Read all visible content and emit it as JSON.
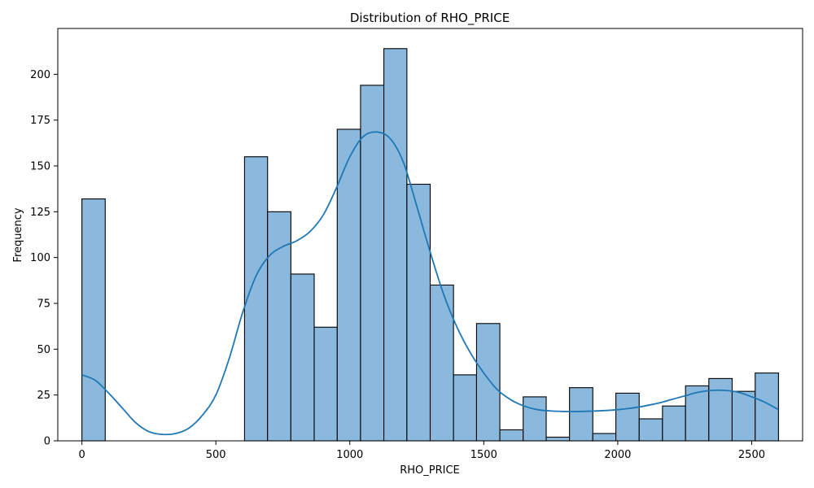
{
  "chart_data": {
    "type": "bar",
    "subtype": "histogram-with-kde",
    "title": "Distribution of RHO_PRICE",
    "xlabel": "RHO_PRICE",
    "ylabel": "Frequency",
    "xlim": [
      -90,
      2690
    ],
    "ylim": [
      0,
      225
    ],
    "xticks": [
      0,
      500,
      1000,
      1500,
      2000,
      2500
    ],
    "yticks": [
      0,
      25,
      50,
      75,
      100,
      125,
      150,
      175,
      200
    ],
    "grid": false,
    "bar_color": "#8ab9dd",
    "line_color": "#1f77b4",
    "bins": [
      {
        "start": 0,
        "end": 87,
        "count": 132
      },
      {
        "start": 87,
        "end": 173,
        "count": 0
      },
      {
        "start": 173,
        "end": 260,
        "count": 0
      },
      {
        "start": 260,
        "end": 347,
        "count": 0
      },
      {
        "start": 347,
        "end": 433,
        "count": 0
      },
      {
        "start": 433,
        "end": 520,
        "count": 0
      },
      {
        "start": 520,
        "end": 607,
        "count": 0
      },
      {
        "start": 607,
        "end": 693,
        "count": 155
      },
      {
        "start": 693,
        "end": 780,
        "count": 125
      },
      {
        "start": 780,
        "end": 867,
        "count": 91
      },
      {
        "start": 867,
        "end": 953,
        "count": 62
      },
      {
        "start": 953,
        "end": 1040,
        "count": 170
      },
      {
        "start": 1040,
        "end": 1127,
        "count": 194
      },
      {
        "start": 1127,
        "end": 1213,
        "count": 214
      },
      {
        "start": 1213,
        "end": 1300,
        "count": 140
      },
      {
        "start": 1300,
        "end": 1387,
        "count": 85
      },
      {
        "start": 1387,
        "end": 1473,
        "count": 36
      },
      {
        "start": 1473,
        "end": 1560,
        "count": 64
      },
      {
        "start": 1560,
        "end": 1647,
        "count": 6
      },
      {
        "start": 1647,
        "end": 1733,
        "count": 24
      },
      {
        "start": 1733,
        "end": 1820,
        "count": 2
      },
      {
        "start": 1820,
        "end": 1907,
        "count": 29
      },
      {
        "start": 1907,
        "end": 1993,
        "count": 4
      },
      {
        "start": 1993,
        "end": 2080,
        "count": 26
      },
      {
        "start": 2080,
        "end": 2167,
        "count": 12
      },
      {
        "start": 2167,
        "end": 2253,
        "count": 19
      },
      {
        "start": 2253,
        "end": 2340,
        "count": 30
      },
      {
        "start": 2340,
        "end": 2427,
        "count": 34
      },
      {
        "start": 2427,
        "end": 2513,
        "count": 27
      },
      {
        "start": 2513,
        "end": 2600,
        "count": 37
      }
    ],
    "kde": {
      "x": [
        0,
        50,
        100,
        150,
        200,
        250,
        300,
        350,
        400,
        450,
        500,
        550,
        600,
        650,
        700,
        750,
        800,
        850,
        900,
        950,
        1000,
        1050,
        1100,
        1150,
        1200,
        1250,
        1300,
        1350,
        1400,
        1450,
        1500,
        1550,
        1600,
        1650,
        1700,
        1750,
        1800,
        1850,
        1900,
        1950,
        2000,
        2050,
        2100,
        2150,
        2200,
        2250,
        2300,
        2350,
        2400,
        2450,
        2500,
        2550,
        2600
      ],
      "y": [
        36,
        33,
        26,
        18,
        10,
        5,
        3.5,
        4,
        7,
        14,
        25,
        45,
        70,
        90,
        101,
        106,
        109,
        114,
        123,
        138,
        155,
        166,
        168.5,
        165,
        152,
        128,
        103,
        80,
        62,
        48,
        37,
        28,
        22.5,
        19,
        17,
        16.3,
        16,
        16,
        16.2,
        16.5,
        17,
        17.8,
        19,
        20.5,
        22.5,
        24.5,
        26.5,
        27.5,
        27.5,
        26.5,
        24,
        21,
        17
      ]
    }
  }
}
